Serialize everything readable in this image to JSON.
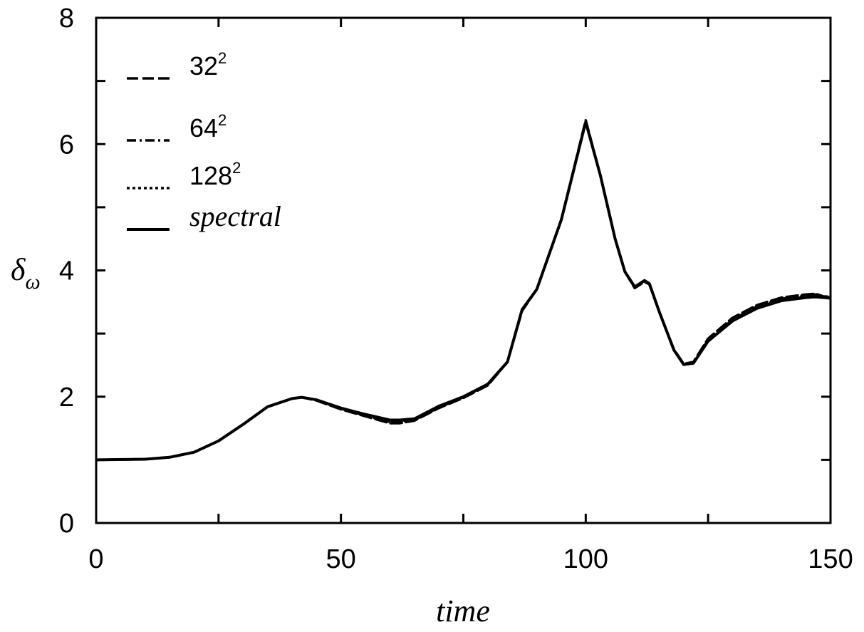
{
  "chart_data": {
    "type": "line",
    "title": "",
    "xlabel": "time",
    "ylabel": "δω",
    "xlim": [
      0,
      150
    ],
    "ylim": [
      0,
      8
    ],
    "xticks": [
      0,
      50,
      100,
      150
    ],
    "yticks": [
      0,
      2,
      4,
      6,
      8
    ],
    "grid": false,
    "legend_position": "top-left",
    "series": [
      {
        "name": "32²",
        "label_base": "32",
        "label_sup": "2",
        "style": "dashed",
        "color": "#000000",
        "x": [
          0,
          10,
          15,
          20,
          25,
          30,
          35,
          40,
          42,
          45,
          50,
          55,
          60,
          62,
          65,
          70,
          75,
          80,
          84,
          87,
          90,
          95,
          100,
          103,
          106,
          108,
          110,
          112,
          113,
          115,
          118,
          120,
          122,
          125,
          130,
          135,
          140,
          145,
          147,
          150
        ],
        "y": [
          1.0,
          1.01,
          1.04,
          1.12,
          1.3,
          1.56,
          1.84,
          1.97,
          1.99,
          1.94,
          1.8,
          1.69,
          1.58,
          1.58,
          1.62,
          1.82,
          1.98,
          2.18,
          2.55,
          3.36,
          3.7,
          4.8,
          6.38,
          5.5,
          4.5,
          3.98,
          3.72,
          3.82,
          3.78,
          3.35,
          2.75,
          2.52,
          2.55,
          2.92,
          3.25,
          3.45,
          3.57,
          3.62,
          3.63,
          3.55
        ]
      },
      {
        "name": "64²",
        "label_base": "64",
        "label_sup": "2",
        "style": "dashdot",
        "color": "#000000",
        "x": [
          0,
          10,
          15,
          20,
          25,
          30,
          35,
          40,
          42,
          45,
          50,
          55,
          60,
          62,
          65,
          70,
          75,
          80,
          84,
          87,
          90,
          95,
          100,
          103,
          106,
          108,
          110,
          112,
          113,
          115,
          118,
          120,
          122,
          125,
          130,
          135,
          140,
          145,
          147,
          150
        ],
        "y": [
          1.0,
          1.01,
          1.04,
          1.12,
          1.3,
          1.56,
          1.84,
          1.97,
          1.99,
          1.95,
          1.81,
          1.7,
          1.6,
          1.6,
          1.63,
          1.83,
          1.99,
          2.19,
          2.55,
          3.37,
          3.7,
          4.8,
          6.36,
          5.5,
          4.5,
          3.98,
          3.73,
          3.83,
          3.78,
          3.35,
          2.74,
          2.51,
          2.54,
          2.9,
          3.22,
          3.43,
          3.55,
          3.6,
          3.62,
          3.56
        ]
      },
      {
        "name": "128²",
        "label_base": "128",
        "label_sup": "2",
        "style": "dotted",
        "color": "#000000",
        "x": [
          0,
          10,
          15,
          20,
          25,
          30,
          35,
          40,
          42,
          45,
          50,
          55,
          60,
          62,
          65,
          70,
          75,
          80,
          84,
          87,
          90,
          95,
          100,
          103,
          106,
          108,
          110,
          112,
          113,
          115,
          118,
          120,
          122,
          125,
          130,
          135,
          140,
          145,
          147,
          150
        ],
        "y": [
          1.0,
          1.01,
          1.04,
          1.12,
          1.3,
          1.56,
          1.84,
          1.97,
          1.99,
          1.95,
          1.82,
          1.71,
          1.62,
          1.62,
          1.64,
          1.84,
          2.0,
          2.2,
          2.55,
          3.38,
          3.7,
          4.8,
          6.35,
          5.5,
          4.5,
          3.98,
          3.74,
          3.84,
          3.79,
          3.35,
          2.74,
          2.51,
          2.53,
          2.88,
          3.2,
          3.41,
          3.53,
          3.58,
          3.6,
          3.58
        ]
      },
      {
        "name": "spectral",
        "style": "solid",
        "color": "#000000",
        "x": [
          0,
          10,
          15,
          20,
          25,
          30,
          35,
          40,
          42,
          45,
          50,
          55,
          60,
          62,
          65,
          70,
          75,
          80,
          84,
          87,
          90,
          95,
          100,
          103,
          106,
          108,
          110,
          112,
          113,
          115,
          118,
          120,
          122,
          125,
          130,
          135,
          140,
          145,
          147,
          150
        ],
        "y": [
          1.0,
          1.01,
          1.04,
          1.12,
          1.3,
          1.56,
          1.84,
          1.97,
          1.99,
          1.95,
          1.82,
          1.72,
          1.63,
          1.63,
          1.65,
          1.85,
          2.0,
          2.2,
          2.55,
          3.38,
          3.7,
          4.8,
          6.35,
          5.5,
          4.5,
          3.98,
          3.74,
          3.84,
          3.79,
          3.35,
          2.74,
          2.51,
          2.53,
          2.88,
          3.2,
          3.4,
          3.52,
          3.57,
          3.58,
          3.56
        ]
      }
    ]
  }
}
